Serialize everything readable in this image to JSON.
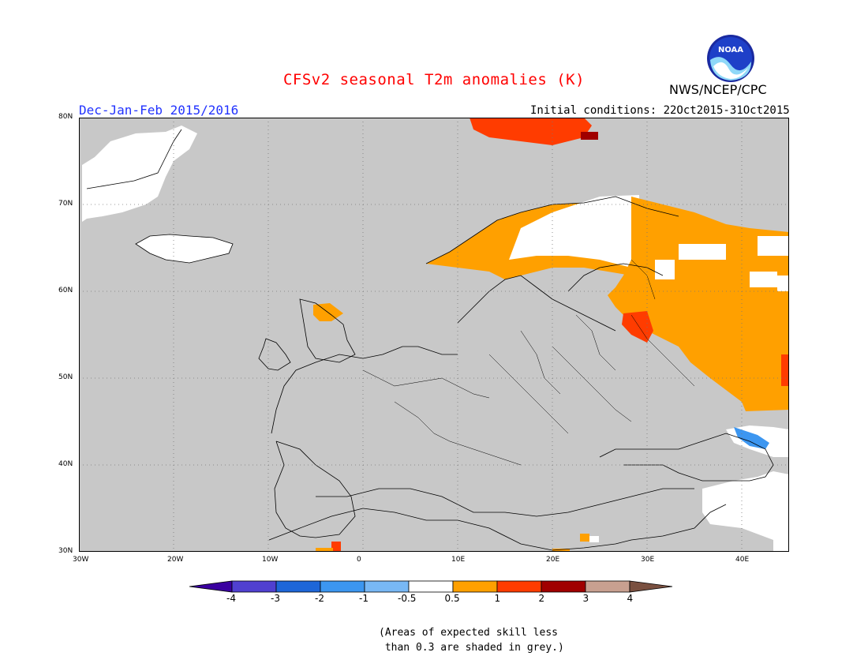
{
  "header": {
    "title": "CFSv2 seasonal T2m anomalies (K)",
    "season": "Dec-Jan-Feb 2015/2016",
    "initial_conditions": "Initial conditions: 22Oct2015-31Oct2015",
    "agency": "NWS/NCEP/CPC",
    "logo_text": "NOAA"
  },
  "map": {
    "lat_range": [
      30,
      80
    ],
    "lon_range": [
      -30,
      45
    ],
    "lat_labels": [
      "30N",
      "40N",
      "50N",
      "60N",
      "70N",
      "80N"
    ],
    "lon_labels": [
      "30W",
      "20W",
      "10W",
      "0",
      "10E",
      "20E",
      "30E",
      "40E"
    ],
    "background_color": "#c8c8c8"
  },
  "colorbar": {
    "tick_labels": [
      "-4",
      "-3",
      "-2",
      "-1",
      "-0.5",
      "0.5",
      "1",
      "2",
      "3",
      "4"
    ],
    "colors": [
      "#3a00a0",
      "#5040d0",
      "#1e66d8",
      "#3c96f0",
      "#78b8f5",
      "#ffffff",
      "#ffa000",
      "#ff3c00",
      "#a00000",
      "#c8a090",
      "#7a5040"
    ]
  },
  "footnote": "(Areas of expected skill less\n than 0.3 are shaded in grey.)"
}
